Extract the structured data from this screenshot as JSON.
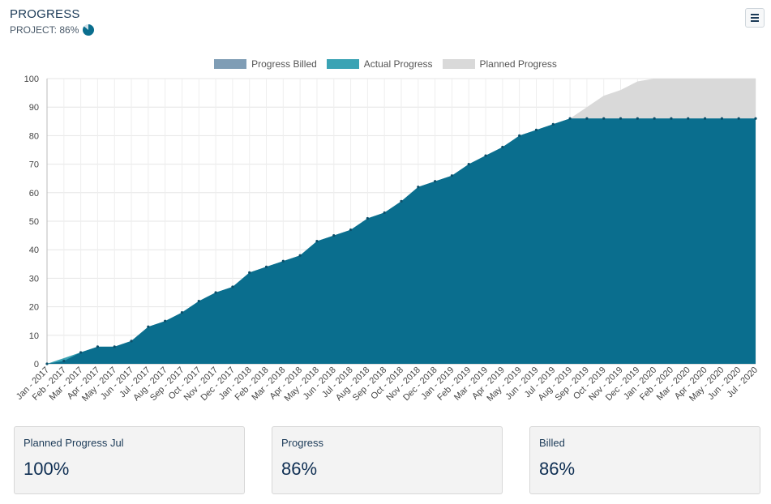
{
  "header": {
    "title": "PROGRESS",
    "project_label": "PROJECT: 86%",
    "project_percent": 86
  },
  "legend": [
    {
      "label": "Progress Billed",
      "color": "#7f9db5"
    },
    {
      "label": "Actual Progress",
      "color": "#3aa3b4"
    },
    {
      "label": "Planned Progress",
      "color": "#d9d9d9"
    }
  ],
  "cards": [
    {
      "label": "Planned Progress Jul",
      "value": "100%"
    },
    {
      "label": "Progress",
      "value": "86%"
    },
    {
      "label": "Billed",
      "value": "86%"
    }
  ],
  "chart_data": {
    "type": "area",
    "ylim": [
      0,
      100
    ],
    "yticks": [
      0,
      10,
      20,
      30,
      40,
      50,
      60,
      70,
      80,
      90,
      100
    ],
    "grid": true,
    "legend_position": "top",
    "categories": [
      "Jan - 2017",
      "Feb - 2017",
      "Mar - 2017",
      "Apr - 2017",
      "May - 2017",
      "Jun - 2017",
      "Jul - 2017",
      "Aug - 2017",
      "Sep - 2017",
      "Oct - 2017",
      "Nov - 2017",
      "Dec - 2017",
      "Jan - 2018",
      "Feb - 2018",
      "Mar - 2018",
      "Apr - 2018",
      "May - 2018",
      "Jun - 2018",
      "Jul - 2018",
      "Aug - 2018",
      "Sep - 2018",
      "Oct - 2018",
      "Nov - 2018",
      "Dec - 2018",
      "Jan - 2019",
      "Feb - 2019",
      "Mar - 2019",
      "Apr - 2019",
      "May - 2019",
      "Jun - 2019",
      "Jul - 2019",
      "Aug - 2019",
      "Sep - 2019",
      "Oct - 2019",
      "Nov - 2019",
      "Dec - 2019",
      "Jan - 2020",
      "Feb - 2020",
      "Mar - 2020",
      "Apr - 2020",
      "May - 2020",
      "Jun - 2020",
      "Jul - 2020"
    ],
    "series": [
      {
        "name": "Planned Progress",
        "color": "#d9d9d9",
        "values": [
          0,
          2,
          4,
          6,
          6,
          8,
          13,
          15,
          18,
          22,
          25,
          27,
          32,
          34,
          36,
          38,
          43,
          45,
          47,
          51,
          53,
          57,
          62,
          64,
          66,
          70,
          73,
          76,
          80,
          82,
          84,
          86,
          90,
          94,
          96,
          99,
          100,
          100,
          100,
          100,
          100,
          100,
          100
        ]
      },
      {
        "name": "Actual Progress",
        "color": "#3aa3b4",
        "values": [
          0,
          2,
          4,
          6,
          6,
          8,
          13,
          15,
          18,
          22,
          25,
          27,
          32,
          34,
          36,
          38,
          43,
          45,
          47,
          51,
          53,
          57,
          62,
          64,
          66,
          70,
          73,
          76,
          80,
          82,
          84,
          86,
          86,
          86,
          86,
          86,
          86,
          86,
          86,
          86,
          86,
          86,
          86
        ]
      },
      {
        "name": "Progress Billed",
        "color": "#0a6e8e",
        "values": [
          0,
          1,
          4,
          6,
          6,
          8,
          13,
          15,
          18,
          22,
          25,
          27,
          32,
          34,
          36,
          38,
          43,
          45,
          47,
          51,
          53,
          57,
          62,
          64,
          66,
          70,
          73,
          76,
          80,
          82,
          84,
          86,
          86,
          86,
          86,
          86,
          86,
          86,
          86,
          86,
          86,
          86,
          86
        ]
      }
    ]
  }
}
